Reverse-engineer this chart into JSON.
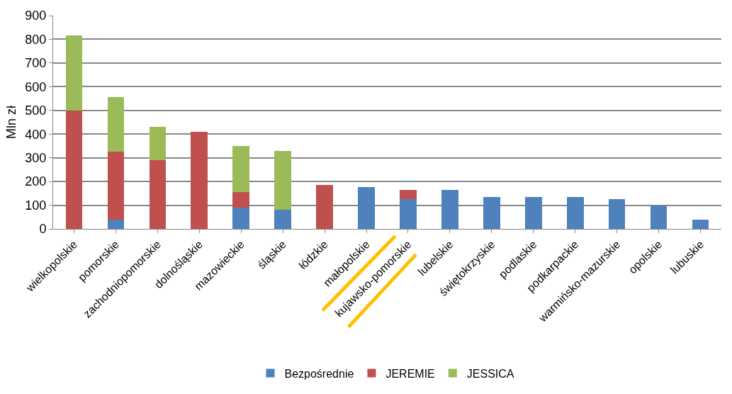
{
  "chart_data": {
    "type": "bar",
    "stacked": true,
    "ylabel": "Mln zł",
    "categories": [
      "wielkopolskie",
      "pomorskie",
      "zachodniopomorskie",
      "dolnośląskie",
      "mazowieckie",
      "śląskie",
      "łódzkie",
      "małopolskie",
      "kujawsko-pomorskie",
      "lubelskie",
      "świętokrzyskie",
      "podlaskie",
      "podkarpackie",
      "warmińsko-mazurskie",
      "opolskie",
      "lubuskie"
    ],
    "series": [
      {
        "name": "Bezpośrednie",
        "color": "#4f81bd",
        "values": [
          0,
          40,
          0,
          0,
          90,
          80,
          0,
          175,
          125,
          165,
          135,
          135,
          135,
          125,
          100,
          40
        ]
      },
      {
        "name": "JEREMIE",
        "color": "#c0504d",
        "values": [
          500,
          285,
          290,
          410,
          65,
          0,
          185,
          0,
          40,
          0,
          0,
          0,
          0,
          0,
          0,
          0
        ]
      },
      {
        "name": "JESSICA",
        "color": "#9bbb59",
        "values": [
          315,
          230,
          140,
          0,
          195,
          250,
          0,
          0,
          0,
          0,
          0,
          0,
          0,
          0,
          0,
          0
        ]
      }
    ],
    "ylim": [
      0,
      900
    ],
    "yticks": [
      0,
      100,
      200,
      300,
      400,
      500,
      600,
      700,
      800,
      900
    ],
    "grid": "y",
    "legend": "bottom"
  }
}
